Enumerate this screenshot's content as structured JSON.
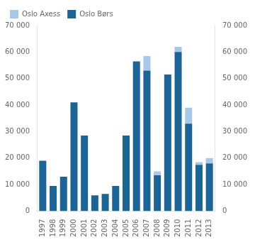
{
  "chart_data": {
    "type": "bar",
    "stacked": true,
    "categories": [
      "1997",
      "1998",
      "1999",
      "2000",
      "2001",
      "2002",
      "2003",
      "2004",
      "2005",
      "2006",
      "2007",
      "2008",
      "2009",
      "2010",
      "2011",
      "2012",
      "2013"
    ],
    "series": [
      {
        "name": "Oslo Børs",
        "color": "#1a6496",
        "values": [
          19000,
          9500,
          13000,
          41000,
          28500,
          6000,
          6500,
          9500,
          28500,
          56500,
          53000,
          13500,
          51500,
          60000,
          33000,
          17500,
          18000
        ]
      },
      {
        "name": "Oslo Axess",
        "color": "#a8c8e8",
        "values": [
          0,
          0,
          0,
          0,
          0,
          0,
          0,
          0,
          0,
          0,
          5500,
          1500,
          0,
          2000,
          6000,
          1000,
          2000
        ]
      }
    ],
    "ylim": [
      0,
      70000
    ],
    "yticks": [
      0,
      {
        "value": 10000,
        "label": "10 000"
      },
      {
        "value": 20000,
        "label": "20 000"
      },
      {
        "value": 30000,
        "label": "30 000"
      },
      {
        "value": 40000,
        "label": "40 000"
      },
      {
        "value": 50000,
        "label": "50 000"
      },
      {
        "value": 60000,
        "label": "60 000"
      },
      {
        "value": 70000,
        "label": "70 000"
      }
    ],
    "y2lim": [
      0,
      70000
    ],
    "y2ticks": [
      0,
      {
        "value": 10000,
        "label": "10 000"
      },
      {
        "value": 20000,
        "label": "20 000"
      },
      {
        "value": 30000,
        "label": "30 000"
      },
      {
        "value": 40000,
        "label": "40 000"
      },
      {
        "value": 50000,
        "label": "50 000"
      },
      {
        "value": 60000,
        "label": "60 000"
      },
      {
        "value": 70000,
        "label": "70 000"
      }
    ],
    "legend": "upper left",
    "grid": false
  }
}
